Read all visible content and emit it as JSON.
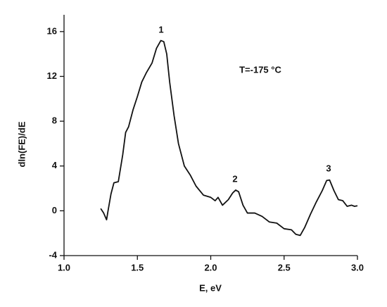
{
  "chart_data": {
    "type": "line",
    "x_label": "E, eV",
    "y_label": "dln(FE)/dE",
    "annotations": [
      "1",
      "2",
      "3",
      "T=-175 °C"
    ],
    "xlim": [
      1.0,
      3.0
    ],
    "xticks": [
      {
        "value": 1.0,
        "label": "1.0"
      },
      1.5,
      {
        "value": 2.0,
        "label": "2.0"
      },
      2.5,
      {
        "value": 3.0,
        "label": "3.0"
      }
    ],
    "ylim": [
      -4,
      17.5
    ],
    "yticks": [
      -4,
      0,
      4,
      8,
      12,
      16
    ],
    "series": [
      {
        "color": "#111111",
        "x": [
          1.25,
          1.27,
          1.29,
          1.3,
          1.32,
          1.34,
          1.37,
          1.4,
          1.42,
          1.44,
          1.47,
          1.5,
          1.53,
          1.56,
          1.6,
          1.63,
          1.66,
          1.68,
          1.7,
          1.72,
          1.75,
          1.78,
          1.82,
          1.86,
          1.9,
          1.95,
          2.0,
          2.03,
          2.05,
          2.08,
          2.12,
          2.15,
          2.17,
          2.19,
          2.22,
          2.25,
          2.3,
          2.35,
          2.4,
          2.45,
          2.5,
          2.55,
          2.58,
          2.61,
          2.64,
          2.68,
          2.72,
          2.76,
          2.79,
          2.81,
          2.84,
          2.87,
          2.9,
          2.93,
          2.96,
          2.98,
          3.0
        ],
        "values": [
          0.2,
          -0.2,
          -0.8,
          0.0,
          1.5,
          2.5,
          2.6,
          5.0,
          7.0,
          7.5,
          9.0,
          10.2,
          11.5,
          12.3,
          13.2,
          14.5,
          15.2,
          15.1,
          14.0,
          11.5,
          8.5,
          6.0,
          4.0,
          3.2,
          2.2,
          1.4,
          1.2,
          0.9,
          1.2,
          0.5,
          1.0,
          1.6,
          1.85,
          1.7,
          0.5,
          -0.2,
          -0.2,
          -0.5,
          -1.0,
          -1.1,
          -1.6,
          -1.7,
          -2.1,
          -2.2,
          -1.5,
          -0.3,
          0.8,
          1.8,
          2.7,
          2.75,
          1.8,
          1.0,
          0.9,
          0.4,
          0.5,
          0.4,
          0.45
        ]
      }
    ]
  }
}
